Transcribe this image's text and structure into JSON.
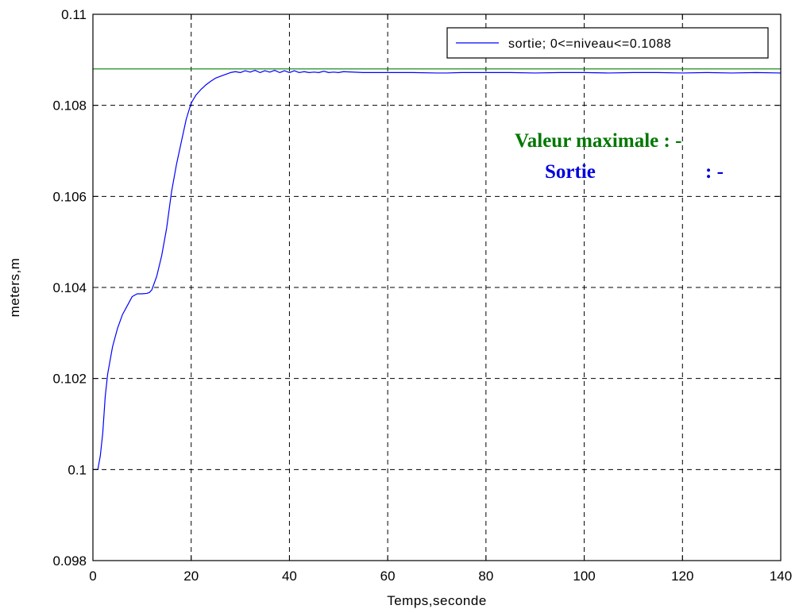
{
  "chart_data": {
    "type": "line",
    "title": "",
    "xlabel": "Temps,seconde",
    "ylabel": "meters,m",
    "xlim": [
      0,
      140
    ],
    "ylim": [
      0.098,
      0.11
    ],
    "xticks": [
      0,
      20,
      40,
      60,
      80,
      100,
      120,
      140
    ],
    "xtick_labels": [
      "0",
      "20",
      "40",
      "60",
      "80",
      "100",
      "120",
      "140"
    ],
    "yticks": [
      0.098,
      0.1,
      0.102,
      0.104,
      0.106,
      0.108,
      0.11
    ],
    "ytick_labels": [
      "0.098",
      "0.1",
      "0.102",
      "0.104",
      "0.106",
      "0.108",
      "0.11"
    ],
    "grid": true,
    "legend_position": "top-right",
    "series": [
      {
        "name": "sortie; 0<=niveau<=0.1088",
        "color": "#0000ff",
        "x": [
          0,
          1,
          1.5,
          2,
          2.5,
          3,
          4,
          5,
          6,
          7,
          8,
          9,
          10,
          11,
          11.5,
          12,
          13,
          14,
          15,
          16,
          17,
          18,
          19,
          20,
          21,
          22,
          23,
          24,
          25,
          26,
          27,
          28,
          29,
          30,
          31,
          32,
          33,
          34,
          35,
          36,
          37,
          38,
          39,
          40,
          41,
          42,
          43,
          44,
          45,
          46,
          47,
          48,
          49,
          50,
          51,
          55,
          60,
          65,
          70,
          72,
          75,
          80,
          85,
          90,
          95,
          100,
          105,
          110,
          115,
          120,
          125,
          130,
          135,
          140
        ],
        "y": [
          0.1,
          0.1,
          0.1003,
          0.1008,
          0.1016,
          0.1021,
          0.1027,
          0.1031,
          0.1034,
          0.1036,
          0.1038,
          0.10386,
          0.10386,
          0.10387,
          0.10389,
          0.10395,
          0.10425,
          0.1047,
          0.1053,
          0.1061,
          0.1067,
          0.1072,
          0.1077,
          0.10805,
          0.10823,
          0.10835,
          0.10845,
          0.10853,
          0.1086,
          0.10864,
          0.10868,
          0.10872,
          0.10874,
          0.10872,
          0.10876,
          0.10873,
          0.10877,
          0.10872,
          0.10876,
          0.10873,
          0.10877,
          0.10872,
          0.10876,
          0.10872,
          0.10876,
          0.10872,
          0.10874,
          0.10872,
          0.10873,
          0.10872,
          0.10875,
          0.10872,
          0.10873,
          0.10872,
          0.10874,
          0.10872,
          0.10872,
          0.10872,
          0.10871,
          0.10871,
          0.10872,
          0.10872,
          0.10872,
          0.10871,
          0.10872,
          0.10872,
          0.10871,
          0.10872,
          0.10872,
          0.10871,
          0.10872,
          0.10871,
          0.10872,
          0.10871
        ]
      },
      {
        "name": "",
        "color": "#008000",
        "x": [
          0,
          140
        ],
        "y": [
          0.1088,
          0.1088
        ]
      }
    ],
    "annotations": [
      {
        "text": "Valeur maximale : -",
        "color": "#007700"
      },
      {
        "text": "Sortie",
        "color": "#0000dd"
      },
      {
        "text": ": -",
        "color": "#0000dd"
      }
    ]
  }
}
